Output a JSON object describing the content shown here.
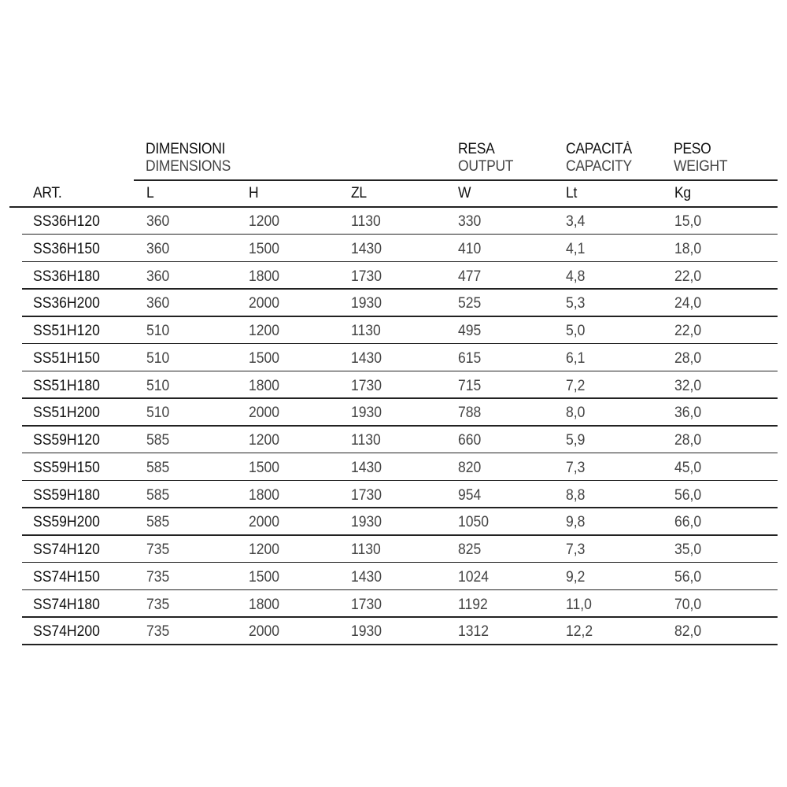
{
  "header": {
    "groups": [
      {
        "it": "DIMENSIONI",
        "en": "DIMENSIONS"
      },
      {
        "it": "RESA",
        "en": "OUTPUT"
      },
      {
        "it": "CAPACITÀ",
        "en": "CAPACITY"
      },
      {
        "it": "PESO",
        "en": "WEIGHT"
      }
    ],
    "columns": [
      "ART.",
      "L",
      "H",
      "ZL",
      "W",
      "Lt",
      "Kg"
    ]
  },
  "rows": [
    [
      "SS36H120",
      "360",
      "1200",
      "1130",
      "330",
      "3,4",
      "15,0"
    ],
    [
      "SS36H150",
      "360",
      "1500",
      "1430",
      "410",
      "4,1",
      "18,0"
    ],
    [
      "SS36H180",
      "360",
      "1800",
      "1730",
      "477",
      "4,8",
      "22,0"
    ],
    [
      "SS36H200",
      "360",
      "2000",
      "1930",
      "525",
      "5,3",
      "24,0"
    ],
    [
      "SS51H120",
      "510",
      "1200",
      "1130",
      "495",
      "5,0",
      "22,0"
    ],
    [
      "SS51H150",
      "510",
      "1500",
      "1430",
      "615",
      "6,1",
      "28,0"
    ],
    [
      "SS51H180",
      "510",
      "1800",
      "1730",
      "715",
      "7,2",
      "32,0"
    ],
    [
      "SS51H200",
      "510",
      "2000",
      "1930",
      "788",
      "8,0",
      "36,0"
    ],
    [
      "SS59H120",
      "585",
      "1200",
      "1130",
      "660",
      "5,9",
      "28,0"
    ],
    [
      "SS59H150",
      "585",
      "1500",
      "1430",
      "820",
      "7,3",
      "45,0"
    ],
    [
      "SS59H180",
      "585",
      "1800",
      "1730",
      "954",
      "8,8",
      "56,0"
    ],
    [
      "SS59H200",
      "585",
      "2000",
      "1930",
      "1050",
      "9,8",
      "66,0"
    ],
    [
      "SS74H120",
      "735",
      "1200",
      "1130",
      "825",
      "7,3",
      "35,0"
    ],
    [
      "SS74H150",
      "735",
      "1500",
      "1430",
      "1024",
      "9,2",
      "56,0"
    ],
    [
      "SS74H180",
      "735",
      "1800",
      "1730",
      "1192",
      "11,0",
      "70,0"
    ],
    [
      "SS74H200",
      "735",
      "2000",
      "1930",
      "1312",
      "12,2",
      "82,0"
    ]
  ]
}
